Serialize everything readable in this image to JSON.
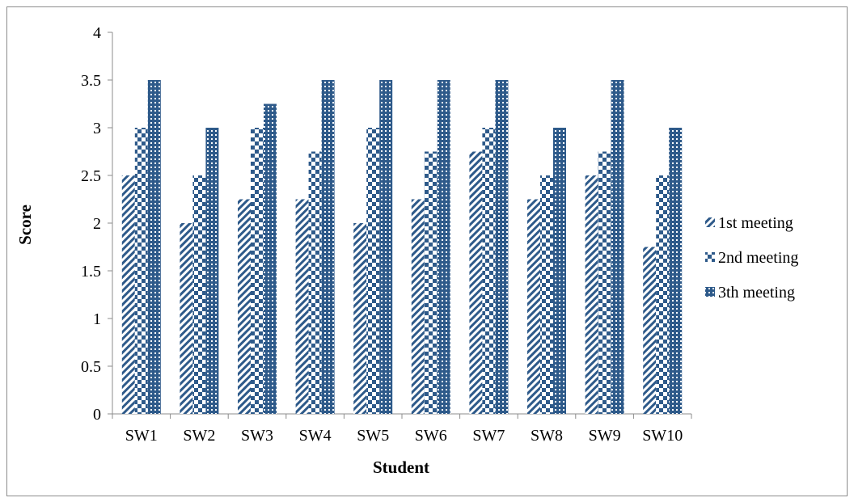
{
  "chart_data": {
    "type": "bar",
    "title": "",
    "xlabel": "Student",
    "ylabel": "Score",
    "ylim": [
      0,
      4
    ],
    "yticks": [
      "0",
      "0.5",
      "1",
      "1.5",
      "2",
      "2.5",
      "3",
      "3.5",
      "4"
    ],
    "categories": [
      "SW1",
      "SW2",
      "SW3",
      "SW4",
      "SW5",
      "SW6",
      "SW7",
      "SW8",
      "SW9",
      "SW10"
    ],
    "series": [
      {
        "name": "1st meeting",
        "pattern": "diagonal",
        "values": [
          2.5,
          2,
          2.25,
          2.25,
          2,
          2.25,
          2.75,
          2.25,
          2.5,
          1.75
        ]
      },
      {
        "name": "2nd meeting",
        "pattern": "checker",
        "values": [
          3,
          2.5,
          3,
          2.75,
          3,
          2.75,
          3,
          2.5,
          2.75,
          2.5
        ]
      },
      {
        "name": "3th meeting",
        "pattern": "grid",
        "values": [
          3.5,
          3,
          3.25,
          3.5,
          3.5,
          3.5,
          3.5,
          3,
          3.5,
          3
        ]
      }
    ],
    "legend_position": "right",
    "grid": false,
    "colors": {
      "bar": "#2e5a8a",
      "axis": "#8c8c8c"
    }
  }
}
